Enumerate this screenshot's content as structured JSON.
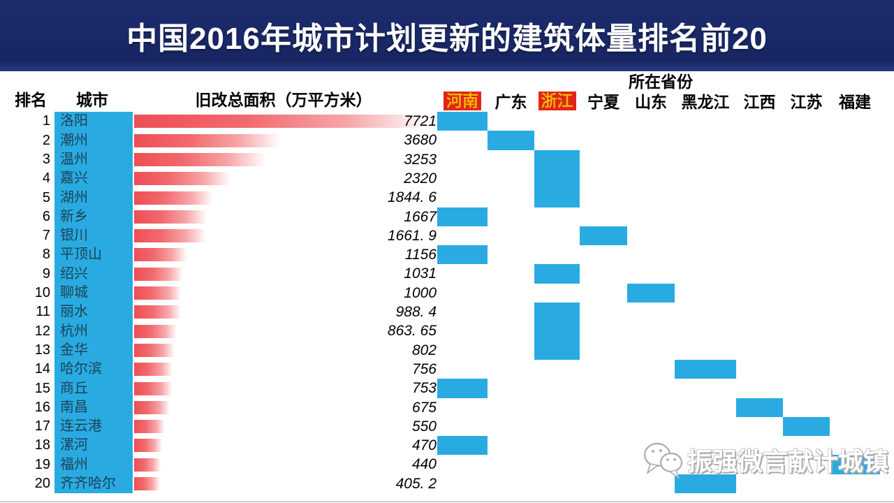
{
  "title": "中国2016年城市计划更新的建筑体量排名前20",
  "headers": {
    "rank": "排名",
    "city": "城市",
    "area": "旧改总面积（万平方米）",
    "province_group": "所在省份"
  },
  "provinces": [
    {
      "label": "河南",
      "highlight": true
    },
    {
      "label": "广东",
      "highlight": false
    },
    {
      "label": "浙江",
      "highlight": true
    },
    {
      "label": "宁夏",
      "highlight": false
    },
    {
      "label": "山东",
      "highlight": false
    },
    {
      "label": "黑龙江",
      "highlight": false
    },
    {
      "label": "江西",
      "highlight": false
    },
    {
      "label": "江苏",
      "highlight": false
    },
    {
      "label": "福建",
      "highlight": false
    }
  ],
  "rows": [
    {
      "rank": "1",
      "city": "洛阳",
      "value": 7721,
      "value_label": "7721",
      "province": "河南"
    },
    {
      "rank": "2",
      "city": "潮州",
      "value": 3680,
      "value_label": "3680",
      "province": "广东"
    },
    {
      "rank": "3",
      "city": "温州",
      "value": 3253,
      "value_label": "3253",
      "province": "浙江"
    },
    {
      "rank": "4",
      "city": "嘉兴",
      "value": 2320,
      "value_label": "2320",
      "province": "浙江"
    },
    {
      "rank": "5",
      "city": "湖州",
      "value": 1844.6,
      "value_label": "1844. 6",
      "province": "浙江"
    },
    {
      "rank": "6",
      "city": "新乡",
      "value": 1667,
      "value_label": "1667",
      "province": "河南"
    },
    {
      "rank": "7",
      "city": "银川",
      "value": 1661.9,
      "value_label": "1661. 9",
      "province": "宁夏"
    },
    {
      "rank": "8",
      "city": "平顶山",
      "value": 1156,
      "value_label": "1156",
      "province": "河南"
    },
    {
      "rank": "9",
      "city": "绍兴",
      "value": 1031,
      "value_label": "1031",
      "province": "浙江"
    },
    {
      "rank": "10",
      "city": "聊城",
      "value": 1000,
      "value_label": "1000",
      "province": "山东"
    },
    {
      "rank": "11",
      "city": "丽水",
      "value": 988.4,
      "value_label": "988. 4",
      "province": "浙江"
    },
    {
      "rank": "12",
      "city": "杭州",
      "value": 863.65,
      "value_label": "863. 65",
      "province": "浙江"
    },
    {
      "rank": "13",
      "city": "金华",
      "value": 802,
      "value_label": "802",
      "province": "浙江"
    },
    {
      "rank": "14",
      "city": "哈尔滨",
      "value": 756,
      "value_label": "756",
      "province": "黑龙江"
    },
    {
      "rank": "15",
      "city": "商丘",
      "value": 753,
      "value_label": "753",
      "province": "河南"
    },
    {
      "rank": "16",
      "city": "南昌",
      "value": 675,
      "value_label": "675",
      "province": "江西"
    },
    {
      "rank": "17",
      "city": "连云港",
      "value": 550,
      "value_label": "550",
      "province": "江苏"
    },
    {
      "rank": "18",
      "city": "漯河",
      "value": 470,
      "value_label": "470",
      "province": "河南"
    },
    {
      "rank": "19",
      "city": "福州",
      "value": 440,
      "value_label": "440",
      "province": "福建"
    },
    {
      "rank": "20",
      "city": "齐齐哈尔",
      "value": 405.2,
      "value_label": "405. 2",
      "province": "黑龙江"
    }
  ],
  "watermark": {
    "icon": "wechat-icon",
    "text": "振强微言献计城镇"
  },
  "colors": {
    "title_bg": "#1b2a68",
    "cell_blue": "#29abe2",
    "bar_red": "#ee4e55",
    "highlight_bg": "#e2251c",
    "highlight_text": "#ffb400"
  },
  "chart_data": {
    "type": "bar",
    "title": "中国2016年城市计划更新的建筑体量排名前20",
    "xlabel": "旧改总面积（万平方米）",
    "ylabel": "城市",
    "legend_position": "none",
    "grid": false,
    "xlim": [
      0,
      7721
    ],
    "categories": [
      "洛阳",
      "潮州",
      "温州",
      "嘉兴",
      "湖州",
      "新乡",
      "银川",
      "平顶山",
      "绍兴",
      "聊城",
      "丽水",
      "杭州",
      "金华",
      "哈尔滨",
      "商丘",
      "南昌",
      "连云港",
      "漯河",
      "福州",
      "齐齐哈尔"
    ],
    "values": [
      7721,
      3680,
      3253,
      2320,
      1844.6,
      1667,
      1661.9,
      1156,
      1031,
      1000,
      988.4,
      863.65,
      802,
      756,
      753,
      675,
      550,
      470,
      440,
      405.2
    ],
    "value_labels": [
      "7721",
      "3680",
      "3253",
      "2320",
      "1844. 6",
      "1667",
      "1661. 9",
      "1156",
      "1031",
      "1000",
      "988. 4",
      "863. 65",
      "802",
      "756",
      "753",
      "675",
      "550",
      "470",
      "440",
      "405. 2"
    ],
    "province_columns": [
      "河南",
      "广东",
      "浙江",
      "宁夏",
      "山东",
      "黑龙江",
      "江西",
      "江苏",
      "福建"
    ],
    "city_province": [
      "河南",
      "广东",
      "浙江",
      "浙江",
      "浙江",
      "河南",
      "宁夏",
      "河南",
      "浙江",
      "山东",
      "浙江",
      "浙江",
      "浙江",
      "黑龙江",
      "河南",
      "江西",
      "江苏",
      "河南",
      "福建",
      "黑龙江"
    ]
  }
}
